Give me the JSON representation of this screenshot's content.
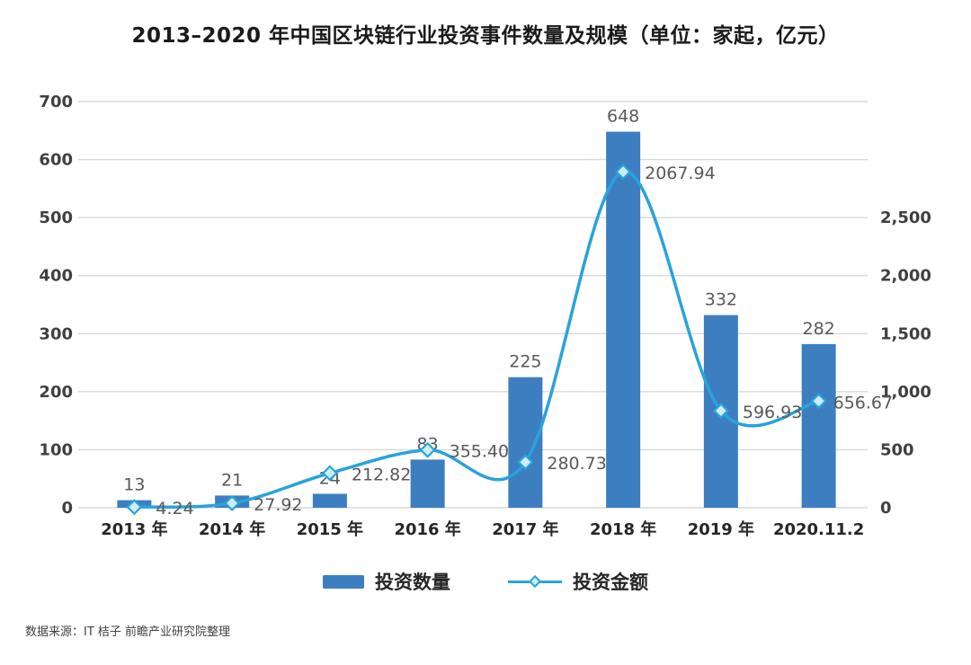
{
  "title": "2013–2020 年中国区块链行业投资事件数量及规模（单位：家起，亿元）",
  "source": "数据来源：IT 桔子  前瞻产业研究院整理",
  "colors": {
    "bar": "#3d7ec1",
    "line": "#29a3da",
    "marker_fill": "#cdeef8",
    "grid": "#d9d9d9",
    "axis_text": "#404040",
    "data_label": "#595959",
    "title_text": "#1a1a1a"
  },
  "chart_data": {
    "type": "bar+line combo",
    "title": "2013–2020 年中国区块链行业投资事件数量及规模（单位：家起，亿元）",
    "categories": [
      "2013 年",
      "2014 年",
      "2015 年",
      "2016 年",
      "2017 年",
      "2018 年",
      "2019 年",
      "2020.11.2"
    ],
    "series": [
      {
        "name": "投资数量",
        "type": "bar",
        "axis": "left",
        "values": [
          13,
          21,
          24,
          83,
          225,
          648,
          332,
          282
        ],
        "labels": [
          "13",
          "21",
          "24",
          "83",
          "225",
          "648",
          "332",
          "282"
        ]
      },
      {
        "name": "投资金额",
        "type": "line",
        "axis": "right",
        "values": [
          4.24,
          27.92,
          212.82,
          355.4,
          280.73,
          2067.94,
          596.93,
          656.67
        ],
        "labels": [
          "4.24",
          "27.92",
          "212.82",
          "355.40",
          "280.73",
          "2067.94",
          "596.93",
          "656.67"
        ]
      }
    ],
    "left_axis": {
      "min": 0,
      "max": 700,
      "step": 100,
      "ticks": [
        "0",
        "100",
        "200",
        "300",
        "400",
        "500",
        "600",
        "700"
      ]
    },
    "right_axis": {
      "min": 0,
      "max": 2500,
      "step": 500,
      "ticks": [
        "0",
        "500",
        "1,000",
        "1,500",
        "2,000",
        "2,500"
      ]
    },
    "grid": true,
    "legend_position": "bottom",
    "legend": [
      {
        "label": "投资数量",
        "type": "bar"
      },
      {
        "label": "投资金额",
        "type": "line"
      }
    ]
  }
}
